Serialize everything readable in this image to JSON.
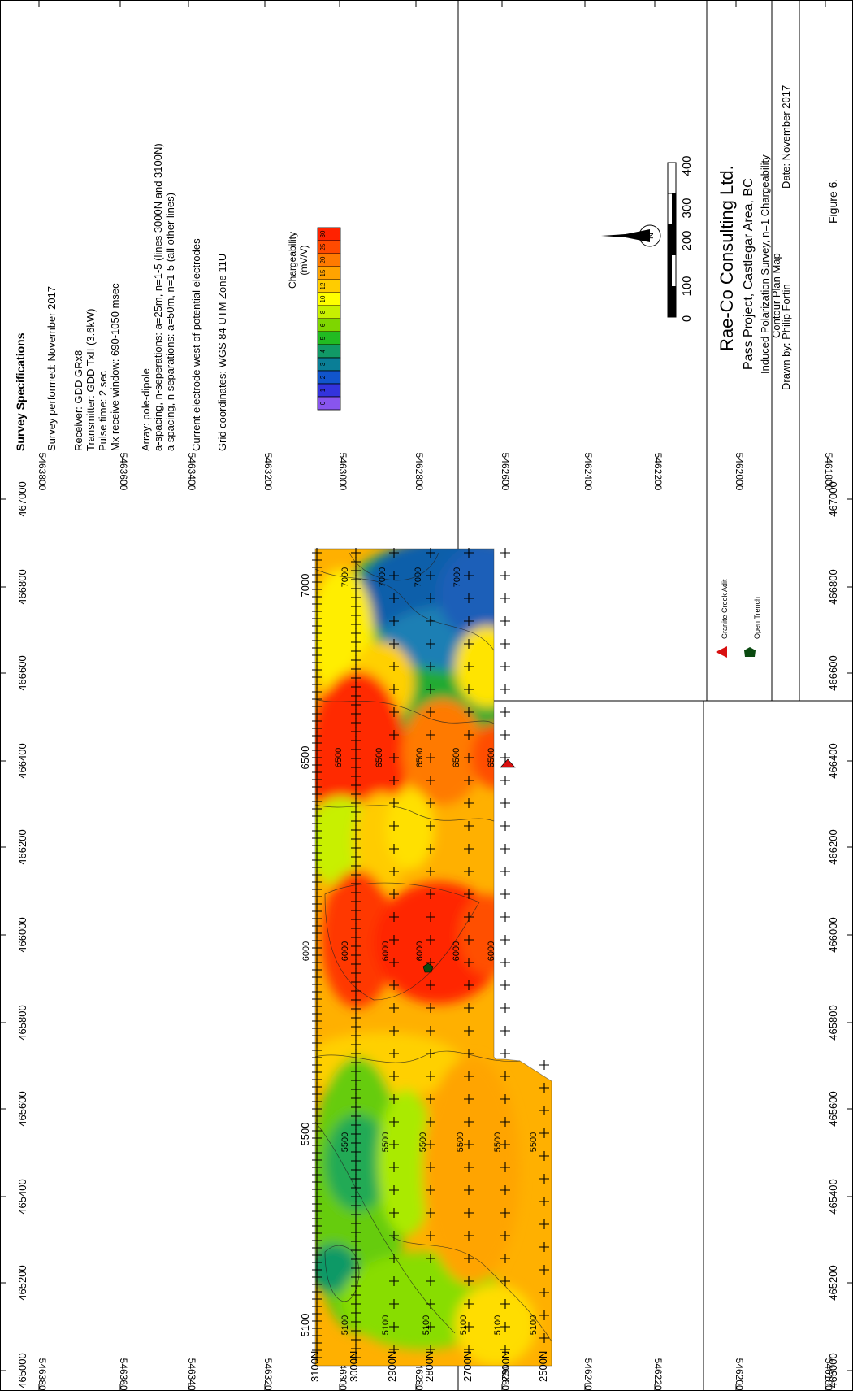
{
  "specifications": {
    "heading": "Survey Specifications",
    "performed": "Survey performed: November 2017",
    "receiver": "Receiver: GDD GRx8",
    "transmitter": "Transmitter: GDD TxII (3.6kW)",
    "pulse_time": "Pulse time: 2 sec",
    "receive_window": "Mx receive window: 690-1050 msec",
    "array": "Array: pole-dipole",
    "spacing_1": "a-spacing, n-seperations: a=25m, n=1-5 (lines 3000N and 3100N)",
    "spacing_2": "a spacing, n separations: a=50m, n=1-5 (all other lines)",
    "current_electrode": "Current electrode west of potential electrodes",
    "grid_coords": "Grid coordinates: WGS 84 UTM Zone 11U"
  },
  "legend": {
    "title_1": "Chargeability",
    "title_2": "(mV/V)",
    "levels": [
      {
        "label": "30",
        "color": "#ff2200"
      },
      {
        "label": "25",
        "color": "#ff4a00"
      },
      {
        "label": "20",
        "color": "#ff7a00"
      },
      {
        "label": "15",
        "color": "#ffa300"
      },
      {
        "label": "12",
        "color": "#ffcc00"
      },
      {
        "label": "10",
        "color": "#ffff00"
      },
      {
        "label": "8",
        "color": "#c8f000"
      },
      {
        "label": "6",
        "color": "#7ed600"
      },
      {
        "label": "5",
        "color": "#22bb22"
      },
      {
        "label": "4",
        "color": "#119966"
      },
      {
        "label": "3",
        "color": "#0a7e96"
      },
      {
        "label": "2",
        "color": "#1155cc"
      },
      {
        "label": "1",
        "color": "#3333dd"
      },
      {
        "label": "0",
        "color": "#8855ee"
      }
    ]
  },
  "scale_bar": {
    "ticks": [
      "0",
      "100",
      "200",
      "300",
      "400"
    ]
  },
  "title_block": {
    "company": "Rae-Co Consulting Ltd.",
    "project": "Pass Project, Castlegar Area, BC",
    "survey_title": "Induced Polarization Survey, n=1 Chargeability",
    "map_type": "Contour Plan Map",
    "drawn_by": "Drawn by: Philip Fortin",
    "date": "Date: November 2017",
    "figure": "Figure 6."
  },
  "map_legend": {
    "adit": "Granite Creek Adit",
    "trench": "Open Trench"
  },
  "axes": {
    "easting_labels": [
      "465000",
      "465200",
      "465400",
      "465600",
      "465800",
      "466000",
      "466200",
      "466400",
      "466600",
      "466800",
      "467000"
    ],
    "northing_labels": [
      "5463800",
      "5463600",
      "5463400",
      "5463200",
      "5463000",
      "5462800",
      "5462600",
      "5462400",
      "5462200",
      "5462000",
      "5461800"
    ]
  },
  "survey_lines": [
    "3100N",
    "3000N",
    "2900N",
    "2800N",
    "2700N",
    "2600N",
    "2500N"
  ],
  "station_labels": [
    "5100",
    "5500",
    "6000",
    "6500",
    "7000"
  ],
  "contour_value_labels": [
    "5100",
    "5100",
    "5100",
    "5100",
    "5100",
    "5100",
    "5500",
    "5500",
    "5500",
    "5500",
    "5500",
    "5500",
    "6000",
    "6000",
    "6000",
    "6000",
    "6000",
    "6000",
    "6500",
    "6500",
    "6500",
    "6500",
    "6500",
    "7000",
    "7000",
    "7000",
    "7000"
  ]
}
